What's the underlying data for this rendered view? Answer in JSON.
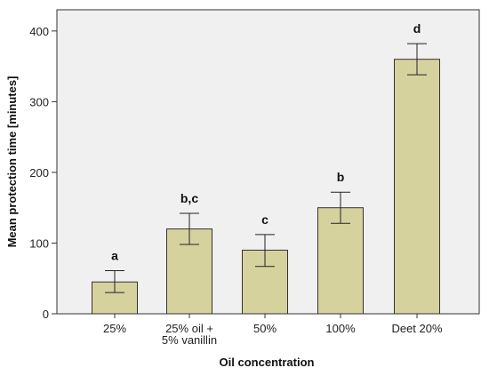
{
  "chart_data": {
    "type": "bar",
    "title": "",
    "xlabel": "Oil concentration",
    "ylabel": "Mean protection time [minutes]",
    "ylim": [
      0,
      430
    ],
    "yticks": [
      0,
      100,
      200,
      300,
      400
    ],
    "ytick_labels": [
      "0",
      "100",
      "200",
      "300",
      "400"
    ],
    "grid": false,
    "categories": [
      {
        "lines": [
          "25%"
        ]
      },
      {
        "lines": [
          "25% oil +",
          "5% vanillin"
        ]
      },
      {
        "lines": [
          "50%"
        ]
      },
      {
        "lines": [
          "100%"
        ]
      },
      {
        "lines": [
          "Deet 20%"
        ]
      }
    ],
    "values": [
      45,
      120,
      90,
      150,
      360
    ],
    "error_low": [
      30,
      98,
      67,
      128,
      338
    ],
    "error_high": [
      61,
      142,
      112,
      172,
      382
    ],
    "significance_labels": [
      "a",
      "b,c",
      "c",
      "b",
      "d"
    ],
    "colors": {
      "bar_fill": "#d6d29e",
      "bar_stroke": "#333333",
      "plot_background": "#f0f0f0",
      "axis": "#333333"
    }
  }
}
